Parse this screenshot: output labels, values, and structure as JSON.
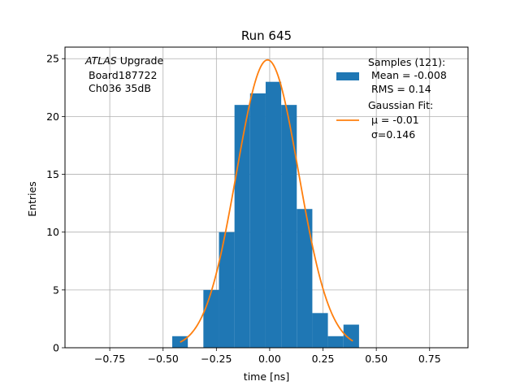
{
  "chart_data": {
    "type": "bar",
    "title": "Run 645",
    "xlabel": "time [ns]",
    "ylabel": "Entries",
    "xlim": [
      -0.96,
      0.93
    ],
    "ylim": [
      0,
      26
    ],
    "grid": true,
    "x_ticks": [
      -0.75,
      -0.5,
      -0.25,
      0.0,
      0.25,
      0.5,
      0.75
    ],
    "x_tick_labels": [
      "−0.75",
      "−0.50",
      "−0.25",
      "0.00",
      "0.25",
      "0.50",
      "0.75"
    ],
    "y_ticks": [
      0,
      5,
      10,
      15,
      20,
      25
    ],
    "y_tick_labels": [
      "0",
      "5",
      "10",
      "15",
      "20",
      "25"
    ],
    "histogram": {
      "name": "Samples (121):",
      "color": "#1f77b4",
      "bin_edges": [
        -0.457,
        -0.384,
        -0.311,
        -0.238,
        -0.165,
        -0.092,
        -0.019,
        0.054,
        0.127,
        0.2,
        0.273,
        0.346,
        0.419
      ],
      "counts": [
        1,
        0,
        5,
        10,
        21,
        22,
        23,
        21,
        12,
        3,
        1,
        2
      ]
    },
    "fit": {
      "name": "Gaussian Fit:",
      "color": "#ff7f0e",
      "mu": -0.01,
      "sigma": 0.146,
      "amplitude": 24.9,
      "x_range": [
        -0.42,
        0.39
      ]
    },
    "annotation": {
      "line1_italic": "ATLAS",
      "line1_rest": " Upgrade",
      "line2": "Board187722",
      "line3": "Ch036 35dB"
    },
    "legend": {
      "position": "top-right",
      "hist_lines": [
        "Samples (121):",
        "Mean = -0.008",
        "RMS = 0.14"
      ],
      "fit_lines": [
        "Gaussian Fit:",
        "μ = -0.01",
        "σ=0.146"
      ]
    }
  }
}
